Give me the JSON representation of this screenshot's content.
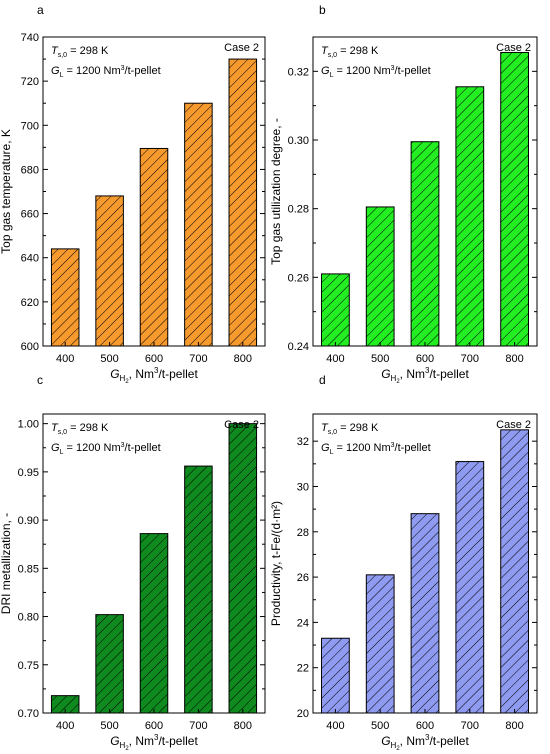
{
  "panel_letters": [
    "a",
    "b",
    "c",
    "d"
  ],
  "annotations": {
    "T_symbol": "T",
    "T_subscript": "s,0",
    "T_value": " = 298 K",
    "G_symbol": "G",
    "G_subscript": "L",
    "G_value": " = 1200 Nm",
    "G_sup": "3",
    "G_unit": "/t-pellet",
    "case_label": "Case 2"
  },
  "xlabel": {
    "symbol": "G",
    "subscript": "H",
    "sub_sup": "2",
    "unit": ", Nm",
    "unit_sup": "3",
    "unit_tail": "/t-pellet"
  },
  "chart_data": [
    {
      "type": "bar",
      "panel": "a",
      "categories": [
        "400",
        "500",
        "600",
        "700",
        "800"
      ],
      "values": [
        644,
        668,
        689.5,
        710,
        730
      ],
      "ylabel": "Top gas temperature, K",
      "ylim": [
        600,
        740
      ],
      "yticks": [
        600,
        620,
        640,
        660,
        680,
        700,
        720,
        740
      ],
      "tick_decimals": 0,
      "color": "#f79a2e",
      "hatch": "diagonal"
    },
    {
      "type": "bar",
      "panel": "b",
      "categories": [
        "400",
        "500",
        "600",
        "700",
        "800"
      ],
      "values": [
        0.261,
        0.2805,
        0.2995,
        0.3155,
        0.3255
      ],
      "ylabel": "Top gas utilization degree, -",
      "ylim": [
        0.24,
        0.33
      ],
      "yticks": [
        0.24,
        0.26,
        0.28,
        0.3,
        0.32
      ],
      "tick_decimals": 2,
      "color": "#22ee22",
      "hatch": "diagonal"
    },
    {
      "type": "bar",
      "panel": "c",
      "categories": [
        "400",
        "500",
        "600",
        "700",
        "800"
      ],
      "values": [
        0.718,
        0.802,
        0.886,
        0.956,
        1.0
      ],
      "ylabel": "DRI metallization, -",
      "ylim": [
        0.7,
        1.01
      ],
      "yticks": [
        0.7,
        0.75,
        0.8,
        0.85,
        0.9,
        0.95,
        1.0
      ],
      "tick_decimals": 2,
      "color": "#0f8a1f",
      "hatch": "diagonal"
    },
    {
      "type": "bar",
      "panel": "d",
      "categories": [
        "400",
        "500",
        "600",
        "700",
        "800"
      ],
      "values": [
        23.3,
        26.1,
        28.8,
        31.1,
        32.5
      ],
      "ylabel": "Productivity, t-Fe/(d·m²)",
      "ylim": [
        20,
        33.2
      ],
      "yticks": [
        20,
        22,
        24,
        26,
        28,
        30,
        32
      ],
      "tick_decimals": 0,
      "color": "#8f9bf0",
      "hatch": "diagonal"
    }
  ]
}
